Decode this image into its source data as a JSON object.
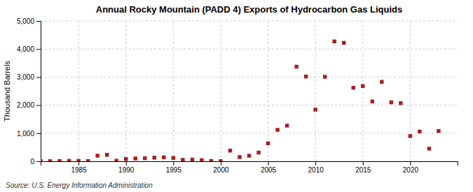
{
  "chart_data": {
    "type": "scatter",
    "title": "Annual Rocky Mountain (PADD 4) Exports of Hydrocarbon Gas Liquids",
    "ylabel": "Thousand Barrels",
    "source": "Source: U.S. Energy Information Administration",
    "color": "#a52020",
    "marker": "square",
    "grid": true,
    "xlim": [
      1981,
      2025
    ],
    "xticks": [
      1985,
      1990,
      1995,
      2000,
      2005,
      2010,
      2015,
      2020
    ],
    "ylim": [
      0,
      5000
    ],
    "yticks": [
      0,
      {
        "value": 1000,
        "label": "1,000"
      },
      {
        "value": 2000,
        "label": "2,000"
      },
      {
        "value": 3000,
        "label": "3,000"
      },
      {
        "value": 4000,
        "label": "4,000"
      },
      {
        "value": 5000,
        "label": "5,000"
      }
    ],
    "x": [
      1981,
      1982,
      1983,
      1984,
      1985,
      1986,
      1987,
      1988,
      1989,
      1990,
      1991,
      1992,
      1993,
      1994,
      1995,
      1996,
      1997,
      1998,
      1999,
      2000,
      2001,
      2002,
      2003,
      2004,
      2005,
      2006,
      2007,
      2008,
      2009,
      2010,
      2011,
      2012,
      2013,
      2014,
      2015,
      2016,
      2017,
      2018,
      2019,
      2020,
      2021,
      2022,
      2023
    ],
    "values": [
      5,
      5,
      10,
      15,
      15,
      10,
      200,
      230,
      20,
      80,
      100,
      110,
      130,
      140,
      120,
      50,
      60,
      40,
      10,
      5,
      380,
      150,
      200,
      310,
      640,
      1120,
      1270,
      3370,
      3020,
      1840,
      3010,
      4270,
      4220,
      2620,
      2680,
      2130,
      2830,
      2100,
      2070,
      900,
      1060,
      450,
      1080
    ]
  }
}
